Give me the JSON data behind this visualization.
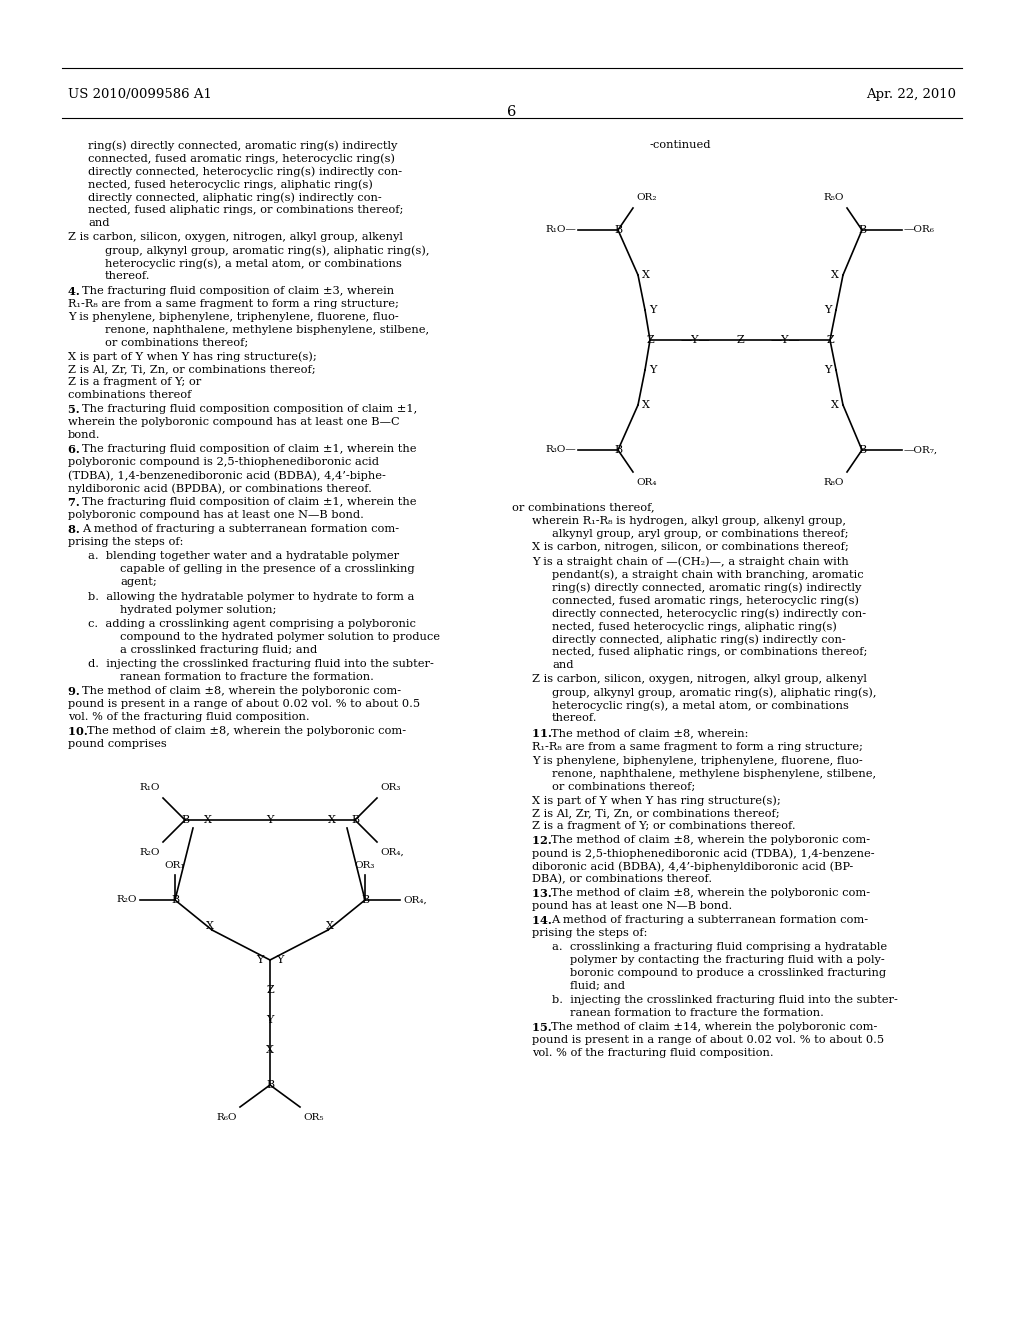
{
  "bg_color": "#ffffff",
  "text_color": "#000000",
  "header_left": "US 2010/0099586 A1",
  "header_right": "Apr. 22, 2010",
  "page_number": "6"
}
